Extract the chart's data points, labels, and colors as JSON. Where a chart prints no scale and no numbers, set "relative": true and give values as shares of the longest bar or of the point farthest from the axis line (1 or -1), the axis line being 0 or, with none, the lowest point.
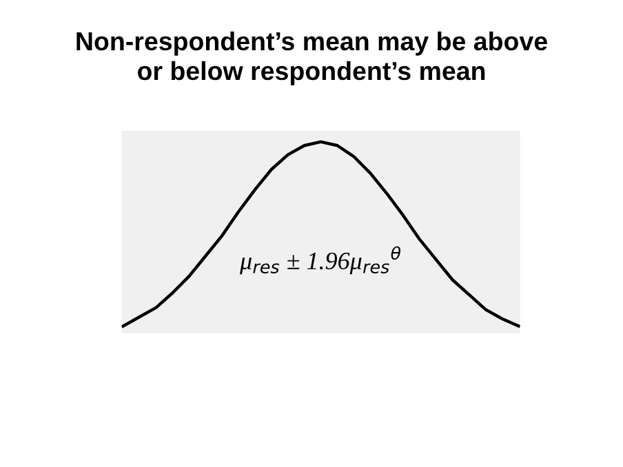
{
  "chart_data": {
    "type": "line",
    "title": "Non-respondent’s mean may be above\nor below respondent’s mean",
    "relative": true,
    "categories": [
      null,
      null,
      null,
      null,
      null,
      null,
      null,
      null,
      null,
      null,
      null,
      null,
      null,
      null,
      null,
      null,
      null,
      null,
      null,
      null,
      null,
      null,
      null,
      null,
      null
    ],
    "series": [
      {
        "color": "#000000",
        "values": [
          0.0,
          0.05,
          0.1,
          0.18,
          0.27,
          0.38,
          0.49,
          0.62,
          0.74,
          0.85,
          0.93,
          0.98,
          1.0,
          0.98,
          0.92,
          0.83,
          0.72,
          0.6,
          0.47,
          0.36,
          0.25,
          0.17,
          0.09,
          0.04,
          0.0
        ]
      }
    ],
    "annotations": [
      "μ$_{res}$ ± 1.96μ$_{res}$$^{θ}$"
    ],
    "grid": false,
    "legend": false,
    "marker": "none",
    "line_style": "solid"
  }
}
